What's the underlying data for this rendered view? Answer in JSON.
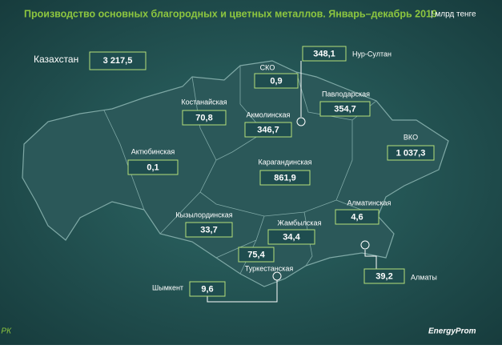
{
  "title": "Производство основных благородных и цветных металлов. Январь–декабрь 2019",
  "unit": "| млрд тенге",
  "total": {
    "name": "Казахстан",
    "value": "3 217,5"
  },
  "regions": [
    {
      "name": "СКО",
      "value": "0,9"
    },
    {
      "name": "Нур-Султан",
      "value": "348,1"
    },
    {
      "name": "Павлодарская",
      "value": "354,7"
    },
    {
      "name": "Костанайская",
      "value": "70,8"
    },
    {
      "name": "Акмолинская",
      "value": "346,7"
    },
    {
      "name": "ВКО",
      "value": "1 037,3"
    },
    {
      "name": "Актюбинская",
      "value": "0,1"
    },
    {
      "name": "Карагандинская",
      "value": "861,9"
    },
    {
      "name": "Алматинская",
      "value": "4,6"
    },
    {
      "name": "Кызылординская",
      "value": "33,7"
    },
    {
      "name": "Жамбылская",
      "value": "34,4"
    },
    {
      "name": "Туркестанская",
      "value": "75,4"
    },
    {
      "name": "Шымкент",
      "value": "9,6"
    },
    {
      "name": "Алматы",
      "value": "39,2"
    }
  ],
  "source": "Источник: КС МНЭ РК",
  "logo": "EnergyProm"
}
